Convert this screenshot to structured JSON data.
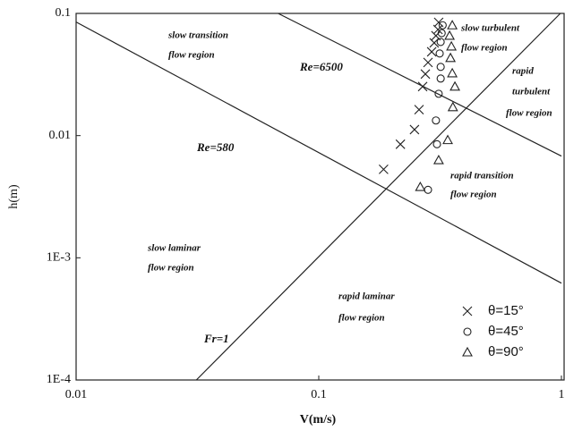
{
  "chart_data": {
    "type": "scatter",
    "x_label": "V(m/s)",
    "y_label": "h(m)",
    "x_log": true,
    "y_log": true,
    "xlim": [
      0.01,
      1
    ],
    "ylim": [
      0.0001,
      0.1
    ],
    "xticks": [
      0.01,
      0.1,
      1
    ],
    "yticks": [
      {
        "value": 0.0001,
        "label": "1E-4"
      },
      {
        "value": 0.001,
        "label": "1E-3"
      },
      0.01,
      0.1
    ],
    "legend_position": "lower right",
    "series": [
      {
        "name": "θ=15°",
        "marker": "x",
        "color": "#222222",
        "x": [
          0.185,
          0.217,
          0.248,
          0.259,
          0.268,
          0.275,
          0.282,
          0.292,
          0.299,
          0.304,
          0.31,
          0.312
        ],
        "values": [
          0.0053,
          0.0085,
          0.0112,
          0.0163,
          0.0252,
          0.0319,
          0.0397,
          0.0485,
          0.0574,
          0.0657,
          0.0739,
          0.0845
        ]
      },
      {
        "name": "θ=45°",
        "marker": "circle",
        "color": "#222222",
        "x": [
          0.282,
          0.307,
          0.304,
          0.312,
          0.318,
          0.318,
          0.315,
          0.318,
          0.321,
          0.324
        ],
        "values": [
          0.0036,
          0.0085,
          0.0133,
          0.022,
          0.0293,
          0.0365,
          0.047,
          0.0584,
          0.069,
          0.08
        ]
      },
      {
        "name": "θ=90°",
        "marker": "triangle",
        "color": "#222222",
        "x": [
          0.262,
          0.312,
          0.34,
          0.357,
          0.364,
          0.355,
          0.349,
          0.352,
          0.346,
          0.355
        ],
        "values": [
          0.0038,
          0.0063,
          0.0092,
          0.0171,
          0.0252,
          0.0324,
          0.0432,
          0.0537,
          0.0657,
          0.08
        ]
      }
    ],
    "lines": [
      {
        "name": "Re=580",
        "color": "#222222",
        "x": [
          0.01,
          1
        ],
        "values": [
          0.085,
          0.00062
        ]
      },
      {
        "name": "Re=6500",
        "color": "#222222",
        "x": [
          0.068,
          1
        ],
        "values": [
          0.1,
          0.0068
        ]
      },
      {
        "name": "Fr=1",
        "color": "#222222",
        "x": [
          0.0313,
          0.99
        ],
        "values": [
          0.0001,
          0.1
        ]
      }
    ],
    "annotations": [
      [
        "slow transition",
        "flow region"
      ],
      [
        "slow turbulent",
        "flow region"
      ],
      [
        "rapid",
        "turbulent",
        "flow region"
      ],
      [
        "rapid transition",
        "flow region"
      ],
      [
        "slow laminar",
        "flow region"
      ],
      [
        "rapid laminar",
        "flow region"
      ]
    ]
  }
}
